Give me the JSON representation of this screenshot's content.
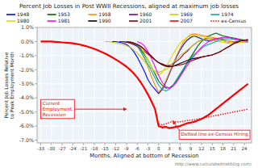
{
  "chart_data": {
    "type": "line",
    "title": "Percent Job Losses in Post WWII Recessions, aligned at maximum job losses",
    "x_label": "Months, Aligned at bottom of Recession",
    "y_label": "Percent Job Losses Relative to Peak Employment Month",
    "xlim": [
      -34,
      26
    ],
    "ylim": [
      -7.2,
      1.0
    ],
    "xticks": [
      -33,
      -30,
      -27,
      -24,
      -21,
      -18,
      -15,
      -12,
      -9,
      -6,
      -3,
      0,
      3,
      6,
      9,
      12,
      15,
      18,
      21,
      24
    ],
    "yticks": [
      {
        "value": 1.0,
        "label": "1.0%"
      },
      {
        "value": 0.0,
        "label": "0.0%"
      },
      {
        "value": -1.0,
        "label": "-1.0%"
      },
      {
        "value": -2.0,
        "label": "-2.0%"
      },
      {
        "value": -3.0,
        "label": "-3.0%"
      },
      {
        "value": -4.0,
        "label": "-4.0%"
      },
      {
        "value": -5.0,
        "label": "-5.0%"
      },
      {
        "value": -6.0,
        "label": "-6.0%"
      },
      {
        "value": -7.0,
        "label": "-7.0%"
      }
    ],
    "grid": true,
    "legend": "top",
    "series": [
      {
        "name": "1948",
        "color": "#0000ff",
        "x": [
          -13,
          -12,
          -11,
          -10,
          -9,
          -8,
          -7,
          -6,
          -5,
          -4,
          -3,
          -2,
          -1,
          0,
          1,
          2,
          3,
          4,
          5,
          6,
          7,
          8,
          9,
          10,
          11,
          12,
          13,
          14,
          15,
          16,
          17,
          18
        ],
        "values": [
          0.0,
          0.0,
          -0.05,
          -0.1,
          -0.2,
          -0.4,
          -0.7,
          -1.1,
          -1.6,
          -2.1,
          -2.7,
          -3.1,
          -3.4,
          -3.7,
          -3.4,
          -2.9,
          -2.3,
          -1.7,
          -1.1,
          -0.6,
          -0.2,
          0.1,
          0.3,
          0.4,
          0.3,
          0.2,
          0.1,
          0.05,
          0.1,
          0.15,
          0.2,
          0.2
        ]
      },
      {
        "name": "1953",
        "color": "#006400",
        "x": [
          -11,
          -10,
          -9,
          -8,
          -7,
          -6,
          -5,
          -4,
          -3,
          -2,
          -1,
          0,
          1,
          2,
          3,
          4,
          5,
          6,
          7,
          8,
          9,
          10,
          11,
          12,
          13,
          14,
          15,
          16,
          17,
          18,
          19,
          20,
          21,
          22,
          23,
          24,
          25
        ],
        "values": [
          0.0,
          0.0,
          -0.05,
          -0.1,
          -0.2,
          -0.35,
          -0.6,
          -0.9,
          -1.3,
          -1.8,
          -2.3,
          -2.8,
          -3.1,
          -3.3,
          -3.3,
          -3.1,
          -2.8,
          -2.4,
          -2.0,
          -1.5,
          -1.1,
          -0.7,
          -0.3,
          0.0,
          0.2,
          0.4,
          0.5,
          0.6,
          0.5,
          0.4,
          0.35,
          0.3,
          0.25,
          0.2,
          0.15,
          0.1,
          0.05
        ]
      },
      {
        "name": "1958",
        "color": "#ff8c00",
        "x": [
          -8,
          -7,
          -6,
          -5,
          -4,
          -3,
          -2,
          -1,
          0,
          1,
          2,
          3,
          4,
          5,
          6,
          7,
          8,
          9,
          10,
          11,
          12,
          13,
          14,
          15,
          16,
          17,
          18,
          19,
          20,
          21,
          22,
          23,
          24,
          25
        ],
        "values": [
          0.0,
          -0.1,
          -0.3,
          -0.7,
          -1.2,
          -1.8,
          -2.5,
          -3.1,
          -3.6,
          -3.3,
          -2.8,
          -2.2,
          -1.6,
          -1.0,
          -0.5,
          0.0,
          0.3,
          0.5,
          0.55,
          0.5,
          0.45,
          0.4,
          0.35,
          0.3,
          0.25,
          0.2,
          0.15,
          0.1,
          0.05,
          0.0,
          -0.05,
          -0.05,
          -0.05,
          0.0
        ]
      },
      {
        "name": "1960",
        "color": "#800080",
        "x": [
          -11,
          -10,
          -9,
          -8,
          -7,
          -6,
          -5,
          -4,
          -3,
          -2,
          -1,
          0,
          1,
          2,
          3,
          4,
          5,
          6,
          7,
          8,
          9,
          10,
          11,
          12,
          13,
          14,
          15,
          16,
          17,
          18,
          19,
          20,
          21,
          22,
          23,
          24,
          25
        ],
        "values": [
          0.0,
          0.0,
          -0.05,
          -0.1,
          -0.2,
          -0.3,
          -0.5,
          -0.7,
          -0.9,
          -1.1,
          -1.3,
          -1.5,
          -1.6,
          -1.7,
          -1.7,
          -1.6,
          -1.4,
          -1.2,
          -0.9,
          -0.7,
          -0.4,
          -0.2,
          0.0,
          0.1,
          0.2,
          0.2,
          0.2,
          0.2,
          0.1,
          0.1,
          0.0,
          -0.05,
          -0.05,
          0.0,
          0.05,
          0.1,
          0.1
        ]
      },
      {
        "name": "1969",
        "color": "#cccc00",
        "x": [
          -15,
          -14,
          -13,
          -12,
          -11,
          -10,
          -9,
          -8,
          -7,
          -6,
          -5,
          -4,
          -3,
          -2,
          -1,
          0,
          1,
          2,
          3,
          4,
          5,
          6,
          7,
          8,
          9,
          10,
          11,
          12,
          13,
          14,
          15,
          16,
          17,
          18,
          19,
          20,
          21,
          22,
          23,
          24,
          25
        ],
        "values": [
          0.0,
          0.0,
          -0.05,
          -0.1,
          -0.15,
          -0.2,
          -0.3,
          -0.4,
          -0.6,
          -0.8,
          -1.1,
          -1.4,
          -1.7,
          -1.9,
          -2.1,
          -2.2,
          -2.1,
          -2.0,
          -1.8,
          -1.5,
          -1.3,
          -1.0,
          -0.8,
          -0.6,
          -0.4,
          -0.2,
          0.0,
          0.1,
          0.2,
          0.2,
          0.1,
          0.05,
          0.0,
          -0.05,
          -0.1,
          -0.15,
          -0.15,
          -0.1,
          -0.05,
          0.0,
          0.05
        ]
      },
      {
        "name": "1974",
        "color": "#00aaaa",
        "x": [
          -8,
          -7,
          -6,
          -5,
          -4,
          -3,
          -2,
          -1,
          0,
          1,
          2,
          3,
          4,
          5,
          6,
          7,
          8,
          9,
          10,
          11,
          12,
          13,
          14,
          15,
          16,
          17,
          18,
          19,
          20,
          21,
          22,
          23,
          24,
          25
        ],
        "values": [
          0.0,
          -0.1,
          -0.3,
          -0.7,
          -1.1,
          -1.6,
          -2.1,
          -2.6,
          -3.1,
          -3.4,
          -3.5,
          -3.4,
          -3.1,
          -2.7,
          -2.3,
          -1.9,
          -1.5,
          -1.2,
          -0.9,
          -0.7,
          -0.5,
          -0.3,
          -0.2,
          -0.1,
          0.0,
          0.1,
          0.2,
          0.2,
          0.2,
          0.15,
          0.1,
          0.05,
          0.0,
          -0.05
        ]
      },
      {
        "name": "1980",
        "color": "#dddd00",
        "x": [
          -9,
          -8,
          -7,
          -6,
          -5,
          -4,
          -3,
          -2,
          -1,
          0,
          1,
          2,
          3,
          4,
          5,
          6,
          7,
          8,
          9,
          10,
          11,
          12,
          13,
          14,
          15,
          16,
          17,
          18,
          19,
          20,
          21,
          22,
          23,
          24,
          25
        ],
        "values": [
          0.0,
          -0.05,
          -0.1,
          -0.2,
          -0.4,
          -0.8,
          -1.3,
          -1.8,
          -2.2,
          -2.4,
          -2.2,
          -1.8,
          -1.4,
          -0.9,
          -0.5,
          -0.1,
          0.1,
          0.3,
          0.4,
          0.45,
          0.4,
          0.35,
          0.3,
          0.25,
          0.2,
          0.15,
          0.1,
          0.05,
          0.0,
          -0.05,
          -0.1,
          -0.1,
          -0.05,
          0.0,
          0.05
        ]
      },
      {
        "name": "1981",
        "color": "#ff00ff",
        "x": [
          -6,
          -5,
          -4,
          -3,
          -2,
          -1,
          0,
          1,
          2,
          3,
          4,
          5,
          6,
          7,
          8,
          9,
          10,
          11,
          12,
          13,
          14,
          15,
          16,
          17,
          18,
          19,
          20,
          21,
          22,
          23,
          24,
          25
        ],
        "values": [
          0.0,
          -0.1,
          -0.3,
          -0.7,
          -1.2,
          -1.8,
          -2.4,
          -2.9,
          -3.2,
          -3.3,
          -3.2,
          -2.9,
          -2.5,
          -2.1,
          -1.7,
          -1.3,
          -1.0,
          -0.7,
          -0.4,
          -0.2,
          0.0,
          0.1,
          0.2,
          0.25,
          0.3,
          0.3,
          0.25,
          0.2,
          0.15,
          0.1,
          0.05,
          0.0
        ]
      },
      {
        "name": "1990",
        "color": "#000000",
        "x": [
          -9,
          -8,
          -7,
          -6,
          -5,
          -4,
          -3,
          -2,
          -1,
          0,
          1,
          2,
          3,
          4,
          5,
          6,
          7,
          8,
          9,
          10,
          11,
          12,
          13,
          14,
          15,
          16,
          17,
          18,
          19,
          20,
          21,
          22,
          23,
          24,
          25
        ],
        "values": [
          0.0,
          -0.05,
          -0.1,
          -0.2,
          -0.35,
          -0.55,
          -0.8,
          -1.05,
          -1.3,
          -1.5,
          -1.65,
          -1.75,
          -1.8,
          -1.75,
          -1.65,
          -1.55,
          -1.45,
          -1.35,
          -1.25,
          -1.2,
          -1.15,
          -1.1,
          -1.05,
          -1.0,
          -0.95,
          -0.85,
          -0.75,
          -0.6,
          -0.45,
          -0.3,
          -0.15,
          -0.05,
          0.05,
          0.1,
          0.1
        ]
      },
      {
        "name": "2001",
        "color": "#8b0000",
        "x": [
          -9,
          -8,
          -7,
          -6,
          -5,
          -4,
          -3,
          -2,
          -1,
          0,
          1,
          2,
          3,
          4,
          5,
          6,
          7,
          8,
          9,
          10,
          11,
          12,
          13,
          14,
          15,
          16,
          17,
          18,
          19,
          20,
          21,
          22,
          23,
          24,
          25
        ],
        "values": [
          0.0,
          -0.05,
          -0.1,
          -0.2,
          -0.35,
          -0.55,
          -0.8,
          -1.05,
          -1.3,
          -1.5,
          -1.6,
          -1.7,
          -1.75,
          -1.75,
          -1.7,
          -1.65,
          -1.6,
          -1.5,
          -1.4,
          -1.3,
          -1.2,
          -1.1,
          -1.05,
          -1.0,
          -0.95,
          -0.85,
          -0.75,
          -0.6,
          -0.45,
          -0.3,
          -0.15,
          -0.05,
          0.05,
          0.1,
          0.15
        ]
      },
      {
        "name": "2007",
        "color": "#ff0000",
        "x": [
          -33,
          -32,
          -31,
          -30,
          -29,
          -28,
          -27,
          -26,
          -25,
          -24,
          -23,
          -22,
          -21,
          -20,
          -19,
          -18,
          -17,
          -16,
          -15,
          -14,
          -13,
          -12,
          -11,
          -10,
          -9,
          -8,
          -7,
          -6,
          -5,
          -4,
          -3,
          -2,
          -1,
          0,
          1,
          2,
          3,
          4,
          5,
          6,
          7,
          8,
          9,
          10,
          11,
          12,
          13,
          14,
          15,
          16,
          17,
          18,
          19,
          20,
          21,
          22,
          23,
          24,
          25
        ],
        "values": [
          0.0,
          0.0,
          0.0,
          0.0,
          -0.02,
          -0.04,
          -0.06,
          -0.08,
          -0.1,
          -0.13,
          -0.17,
          -0.22,
          -0.28,
          -0.35,
          -0.43,
          -0.52,
          -0.62,
          -0.73,
          -0.85,
          -0.98,
          -1.12,
          -1.27,
          -1.43,
          -1.6,
          -1.78,
          -2.0,
          -2.25,
          -2.55,
          -2.9,
          -3.3,
          -3.75,
          -4.25,
          -4.8,
          -6.0,
          -6.1,
          -6.05,
          -6.15,
          -6.1,
          -6.05,
          -6.0,
          -5.9,
          -5.8,
          -5.75,
          -5.7,
          -5.6,
          -5.5,
          -5.35,
          -5.2,
          -5.0,
          -4.8,
          -4.6,
          -4.4,
          -4.2,
          -4.0,
          -3.8,
          -3.6,
          -3.4,
          -3.2,
          -3.0
        ]
      },
      {
        "name": "ex-Census",
        "color": "#ff0000",
        "line_style": "dotted",
        "x": [
          0,
          1,
          2,
          3,
          4,
          5,
          6,
          7,
          8,
          9,
          10,
          11,
          12,
          13,
          14,
          15,
          16,
          17,
          18,
          19,
          20,
          21,
          22,
          23,
          24,
          25
        ],
        "values": [
          -5.85,
          -5.9,
          -5.85,
          -5.75,
          -5.65,
          -5.7,
          -5.7,
          -5.65,
          -5.6,
          -5.58,
          -5.55,
          -5.5,
          -5.45,
          -5.4,
          -5.35,
          -5.3,
          -5.25,
          -5.2,
          -5.15,
          -5.1,
          -5.05,
          -5.0,
          -4.95,
          -4.9,
          -4.85,
          -4.8
        ]
      }
    ],
    "annotations": [
      {
        "text": "Current\nEmployment\nRecession",
        "x": -9,
        "y": -4.8,
        "text_x": -33,
        "text_y": -4.8,
        "color": "red"
      },
      {
        "text": "Dotted line ex-Census Hiring",
        "x": 4,
        "y": -5.65,
        "text_x": 10,
        "text_y": -6.6,
        "color": "red"
      },
      {
        "text": "http://www.calculatedriskblog.com/",
        "color": "gray"
      }
    ]
  }
}
